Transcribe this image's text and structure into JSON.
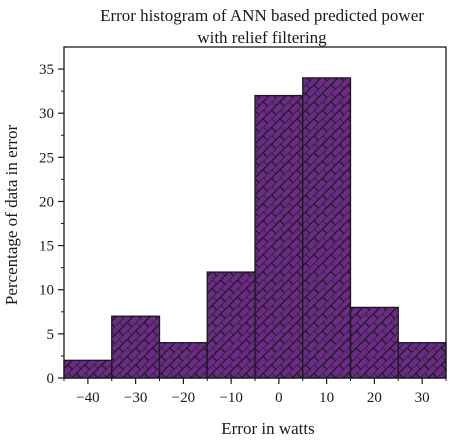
{
  "chart_data": {
    "type": "bar",
    "title": "Error histogram of ANN based predicted power",
    "subtitle": "with relief filtering",
    "xlabel": "Error in watts",
    "ylabel": "Percentage of data in error",
    "xlim": [
      -45,
      35
    ],
    "ylim": [
      0,
      37.5
    ],
    "x_ticks": [
      -40,
      -30,
      -20,
      -10,
      0,
      10,
      20,
      30
    ],
    "y_ticks": [
      0,
      5,
      10,
      15,
      20,
      25,
      30,
      35
    ],
    "bins": [
      {
        "start": -45,
        "end": -35,
        "value": 2
      },
      {
        "start": -35,
        "end": -25,
        "value": 7
      },
      {
        "start": -25,
        "end": -15,
        "value": 4
      },
      {
        "start": -15,
        "end": -5,
        "value": 12
      },
      {
        "start": -5,
        "end": 5,
        "value": 32
      },
      {
        "start": 5,
        "end": 15,
        "value": 34
      },
      {
        "start": 15,
        "end": 25,
        "value": 8
      },
      {
        "start": 25,
        "end": 35,
        "value": 4
      }
    ],
    "bar_color": "#6b2a86",
    "hatch_color": "#1a1a1a",
    "grid": false,
    "legend": "none"
  }
}
